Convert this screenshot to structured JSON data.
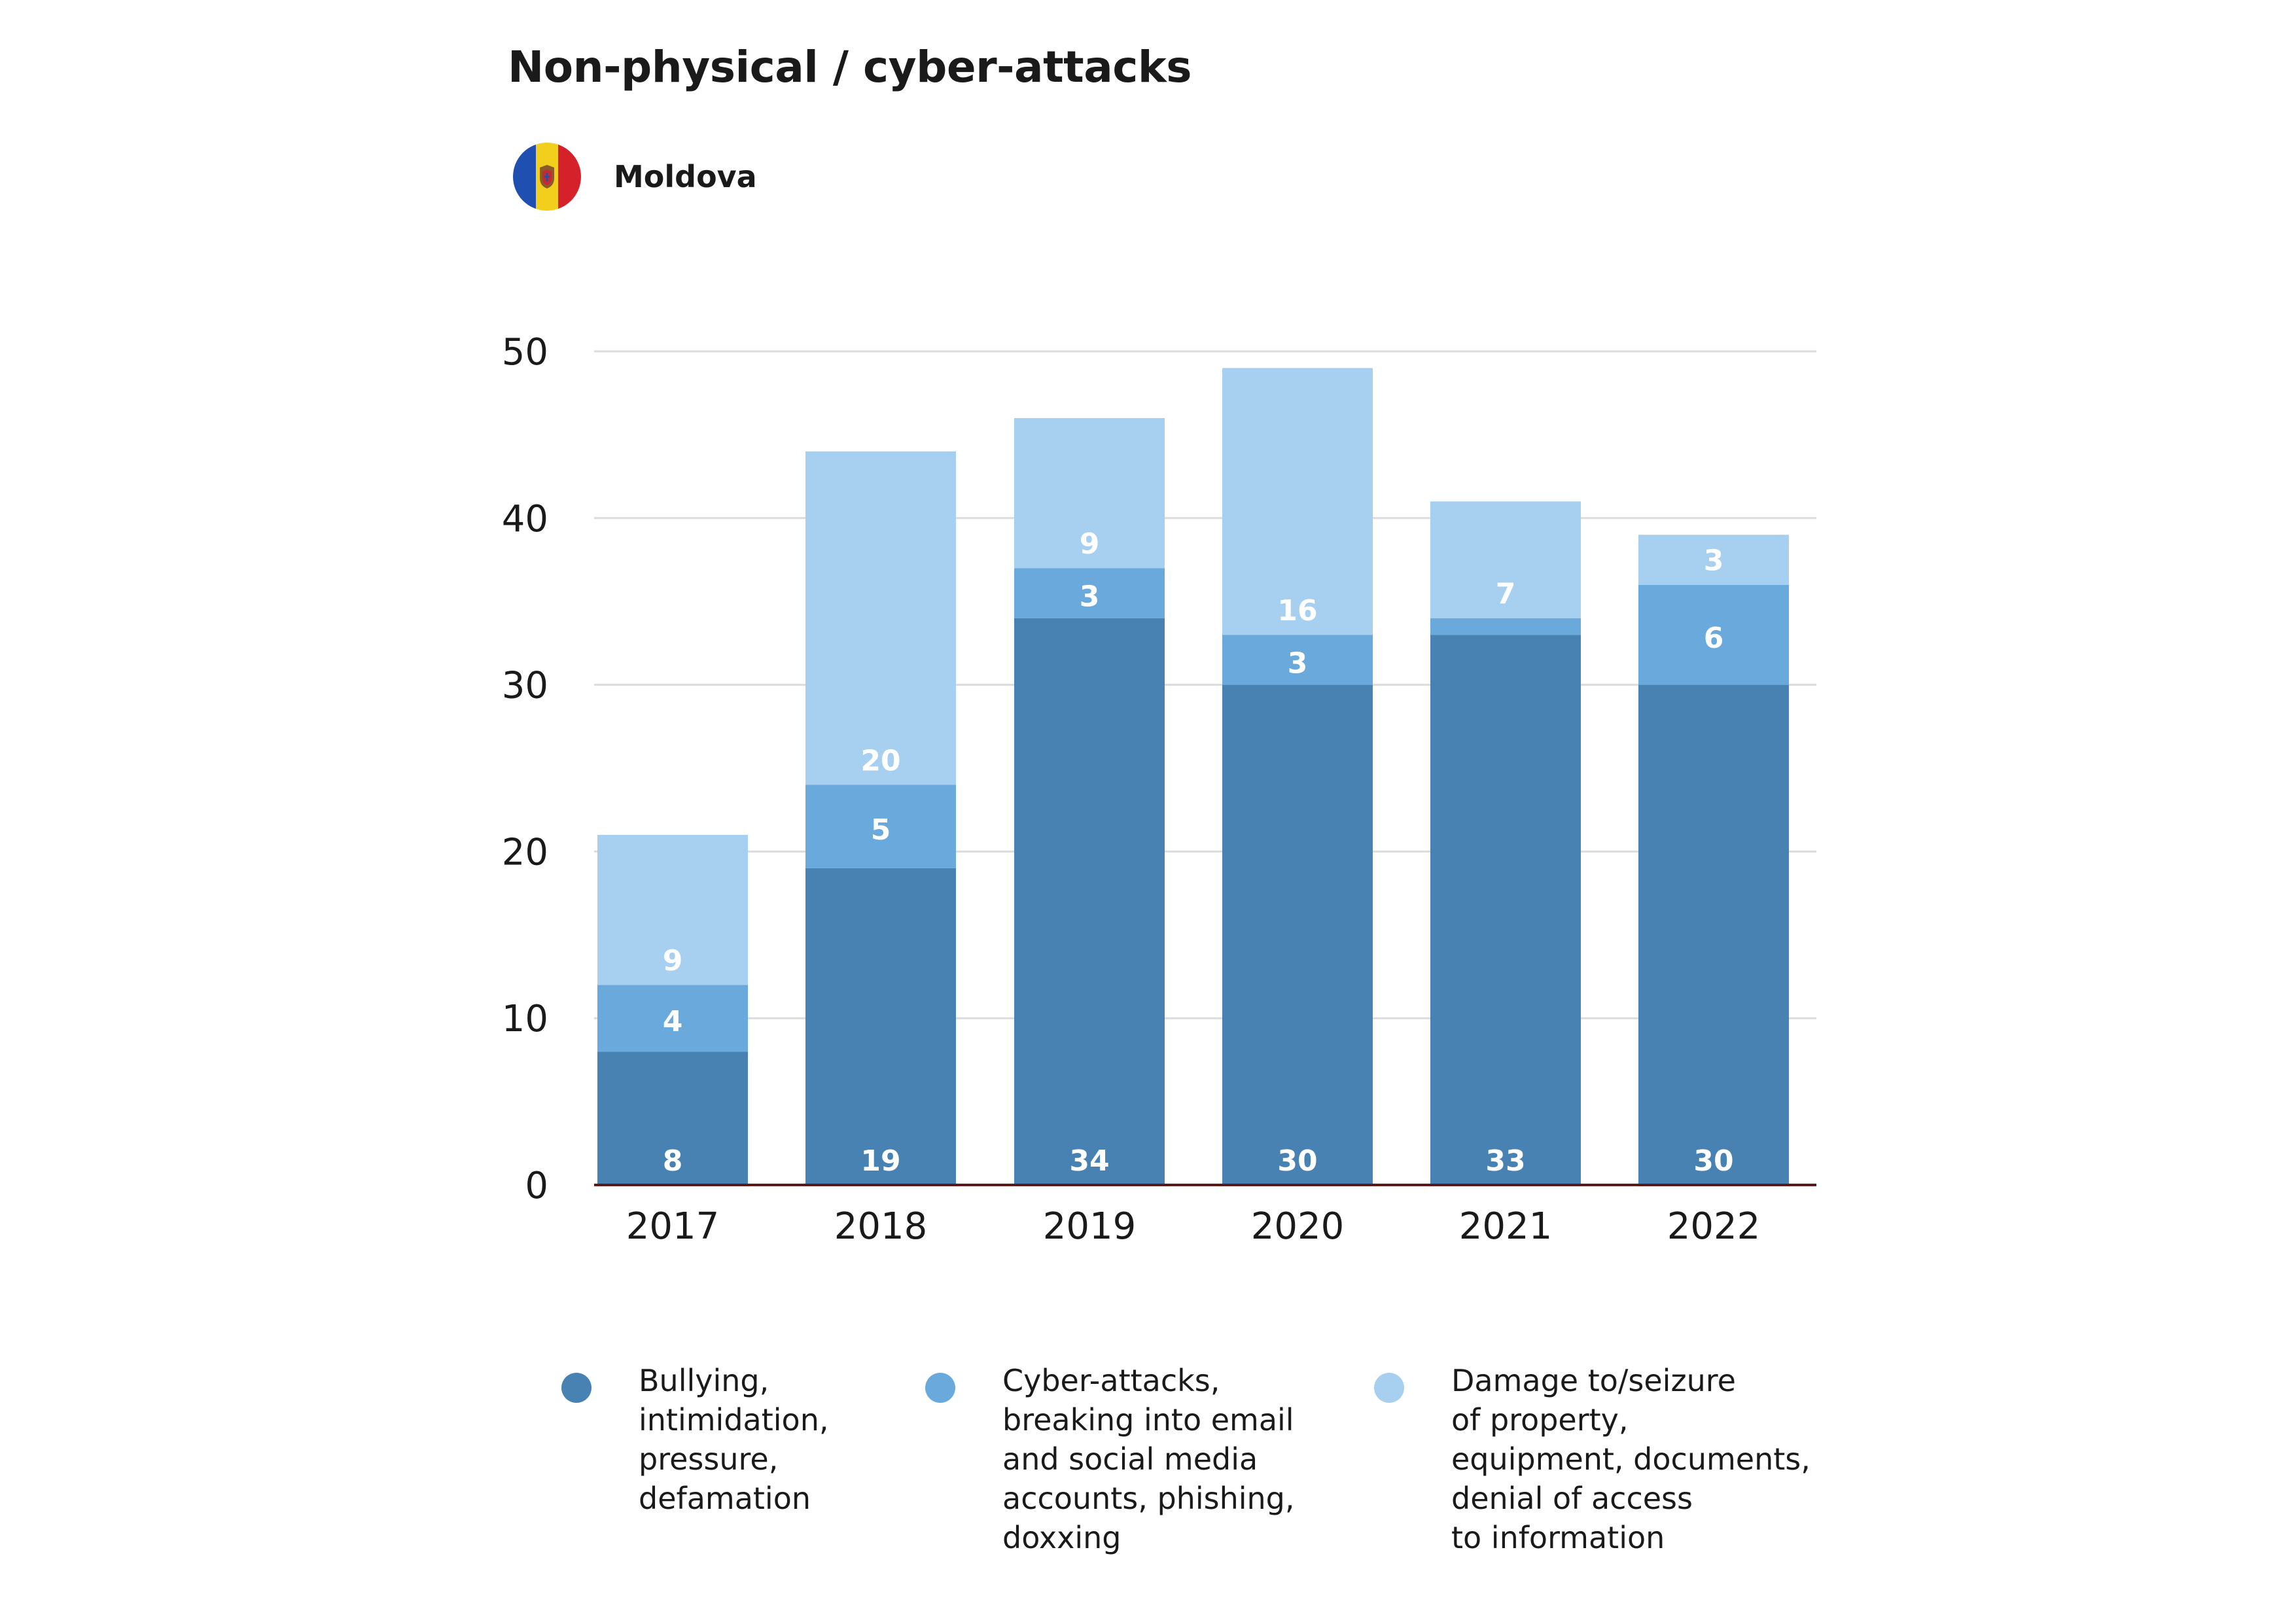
{
  "title": "Non-physical / cyber-attacks",
  "country": {
    "name": "Moldova",
    "flag_colors": [
      "#1f4fb0",
      "#f3cf1d",
      "#d5212a"
    ],
    "flag_icon": "moldova-flag-icon"
  },
  "chart_data": {
    "type": "bar",
    "stacked": true,
    "categories": [
      "2017",
      "2018",
      "2019",
      "2020",
      "2021",
      "2022"
    ],
    "series": [
      {
        "name": "Bullying,\nintimidation,\npressure,\ndefamation",
        "color": "#4882b3",
        "values": [
          8,
          19,
          34,
          30,
          33,
          30
        ],
        "labels": [
          "8",
          "19",
          "34",
          "30",
          "33",
          "30"
        ]
      },
      {
        "name": "Cyber-attacks,\nbreaking into email\nand social media\naccounts, phishing,\ndoxxing",
        "color": "#6aa9dc",
        "values": [
          4,
          5,
          3,
          3,
          1,
          6
        ],
        "labels": [
          "4",
          "5",
          "3",
          "3",
          "",
          "6"
        ]
      },
      {
        "name": "Damage to/seizure\nof property,\nequipment, documents,\ndenial of access\nto information",
        "color": "#a7d0f0",
        "values": [
          9,
          20,
          9,
          16,
          7,
          3
        ],
        "labels": [
          "9",
          "20",
          "9",
          "16",
          "7",
          "3"
        ]
      }
    ],
    "y_ticks": [
      "0",
      "10",
      "20",
      "30",
      "40",
      "50"
    ],
    "ylim": [
      0,
      50
    ],
    "grid": true,
    "legend_position": "bottom"
  }
}
